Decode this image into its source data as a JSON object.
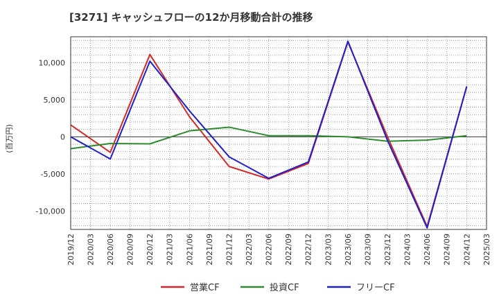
{
  "chart_data": {
    "type": "line",
    "title": "[3271]  キャッシュフローの12か月移動合計の推移",
    "ylabel": "(百万円)",
    "xlabel": "",
    "ylim": [
      -12500,
      13500
    ],
    "yticks": [
      10000,
      5000,
      0,
      -5000,
      -10000
    ],
    "ytick_labels": [
      "10,000",
      "5,000",
      "0",
      "-5,000",
      "-10,000"
    ],
    "x_ticks": [
      "2019/12",
      "2020/03",
      "2020/06",
      "2020/09",
      "2020/12",
      "2021/03",
      "2021/06",
      "2021/09",
      "2021/12",
      "2022/03",
      "2022/06",
      "2022/09",
      "2022/12",
      "2023/03",
      "2023/06",
      "2023/09",
      "2023/12",
      "2024/03",
      "2024/06",
      "2024/09",
      "2024/12",
      "2025/03"
    ],
    "grid": true,
    "legend_position": "bottom",
    "series": [
      {
        "name": "営業CF",
        "color": "#d62728",
        "points": [
          {
            "x": "2019/12",
            "y": 1600
          },
          {
            "x": "2020/06",
            "y": -2100
          },
          {
            "x": "2020/12",
            "y": 11100
          },
          {
            "x": "2021/06",
            "y": 2700
          },
          {
            "x": "2021/12",
            "y": -4000
          },
          {
            "x": "2022/06",
            "y": -5700
          },
          {
            "x": "2022/12",
            "y": -3600
          },
          {
            "x": "2023/06",
            "y": 12800
          },
          {
            "x": "2023/12",
            "y": 0
          },
          {
            "x": "2024/06",
            "y": -12100
          },
          {
            "x": "2024/12",
            "y": 6800
          }
        ]
      },
      {
        "name": "投資CF",
        "color": "#2e8b2e",
        "points": [
          {
            "x": "2019/12",
            "y": -1600
          },
          {
            "x": "2020/06",
            "y": -900
          },
          {
            "x": "2020/12",
            "y": -950
          },
          {
            "x": "2021/06",
            "y": 800
          },
          {
            "x": "2021/12",
            "y": 1300
          },
          {
            "x": "2022/06",
            "y": 150
          },
          {
            "x": "2022/12",
            "y": 150
          },
          {
            "x": "2023/06",
            "y": 0
          },
          {
            "x": "2023/12",
            "y": -600
          },
          {
            "x": "2024/06",
            "y": -450
          },
          {
            "x": "2024/12",
            "y": 150
          }
        ]
      },
      {
        "name": "フリーCF",
        "color": "#1f1fcc",
        "points": [
          {
            "x": "2019/12",
            "y": 0
          },
          {
            "x": "2020/06",
            "y": -3000
          },
          {
            "x": "2020/12",
            "y": 10200
          },
          {
            "x": "2021/06",
            "y": 3500
          },
          {
            "x": "2021/12",
            "y": -2700
          },
          {
            "x": "2022/06",
            "y": -5600
          },
          {
            "x": "2022/12",
            "y": -3400
          },
          {
            "x": "2023/06",
            "y": 12900
          },
          {
            "x": "2023/12",
            "y": -500
          },
          {
            "x": "2024/06",
            "y": -12300
          },
          {
            "x": "2024/12",
            "y": 6800
          }
        ]
      }
    ]
  }
}
